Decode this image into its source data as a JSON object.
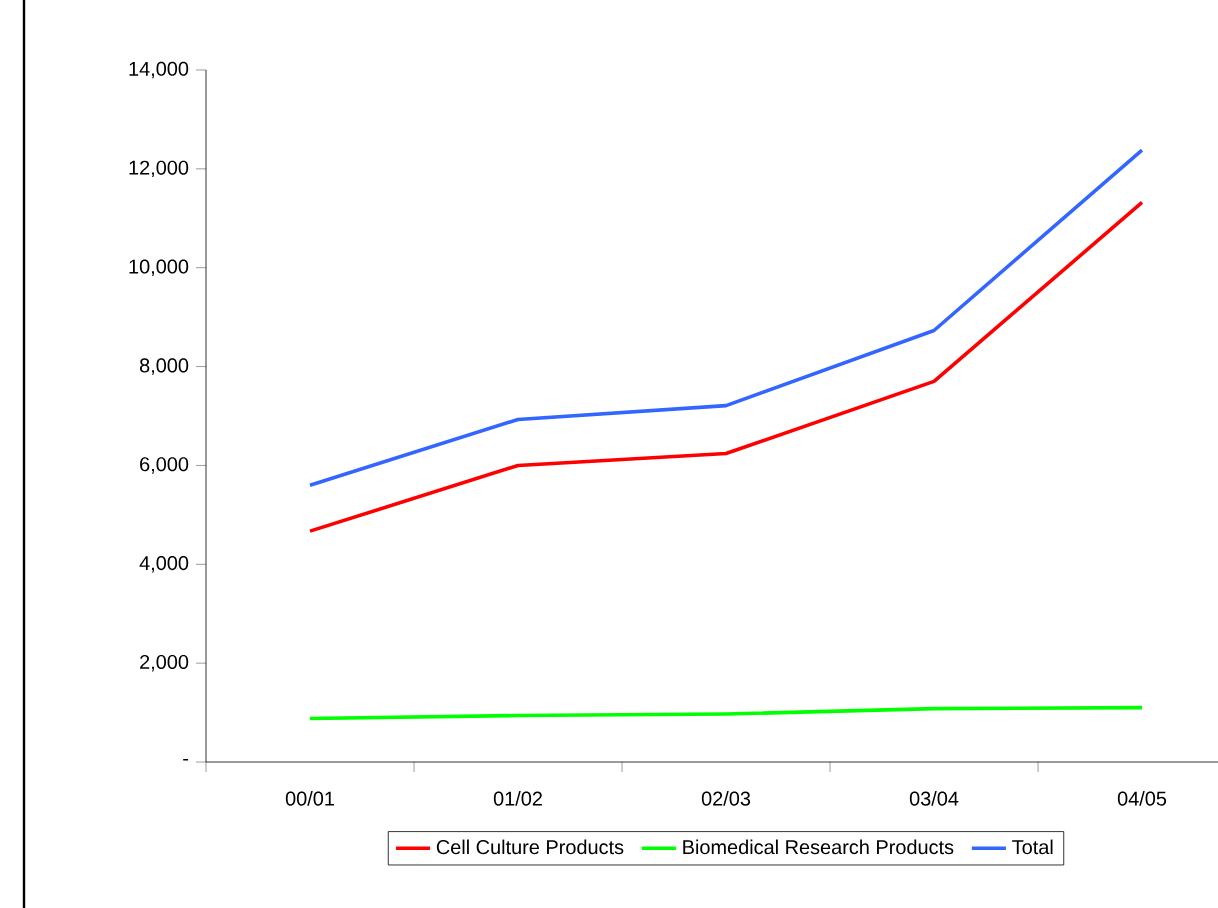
{
  "chart_data": {
    "type": "line",
    "categories": [
      "00/01",
      "01/02",
      "02/03",
      "03/04",
      "04/05"
    ],
    "series": [
      {
        "name": "Cell Culture Products",
        "color": "#ff0000",
        "values": [
          4670,
          6000,
          6240,
          7700,
          11320
        ]
      },
      {
        "name": "Biomedical Research Products",
        "color": "#00ff00",
        "values": [
          880,
          940,
          970,
          1080,
          1100
        ]
      },
      {
        "name": "Total",
        "color": "#3366ff",
        "values": [
          5600,
          6930,
          7210,
          8730,
          12380
        ]
      }
    ],
    "ylim": [
      0,
      14000
    ],
    "yticks": [
      {
        "value": 0,
        "label": "-"
      },
      {
        "value": 2000,
        "label": "2,000"
      },
      {
        "value": 4000,
        "label": "4,000"
      },
      {
        "value": 6000,
        "label": "6,000"
      },
      {
        "value": 8000,
        "label": "8,000"
      },
      {
        "value": 10000,
        "label": "10,000"
      },
      {
        "value": 12000,
        "label": "12,000"
      },
      {
        "value": 14000,
        "label": "14,000"
      }
    ],
    "grid": false,
    "legend": "bottom",
    "marker": "none",
    "line_style": "solid"
  }
}
